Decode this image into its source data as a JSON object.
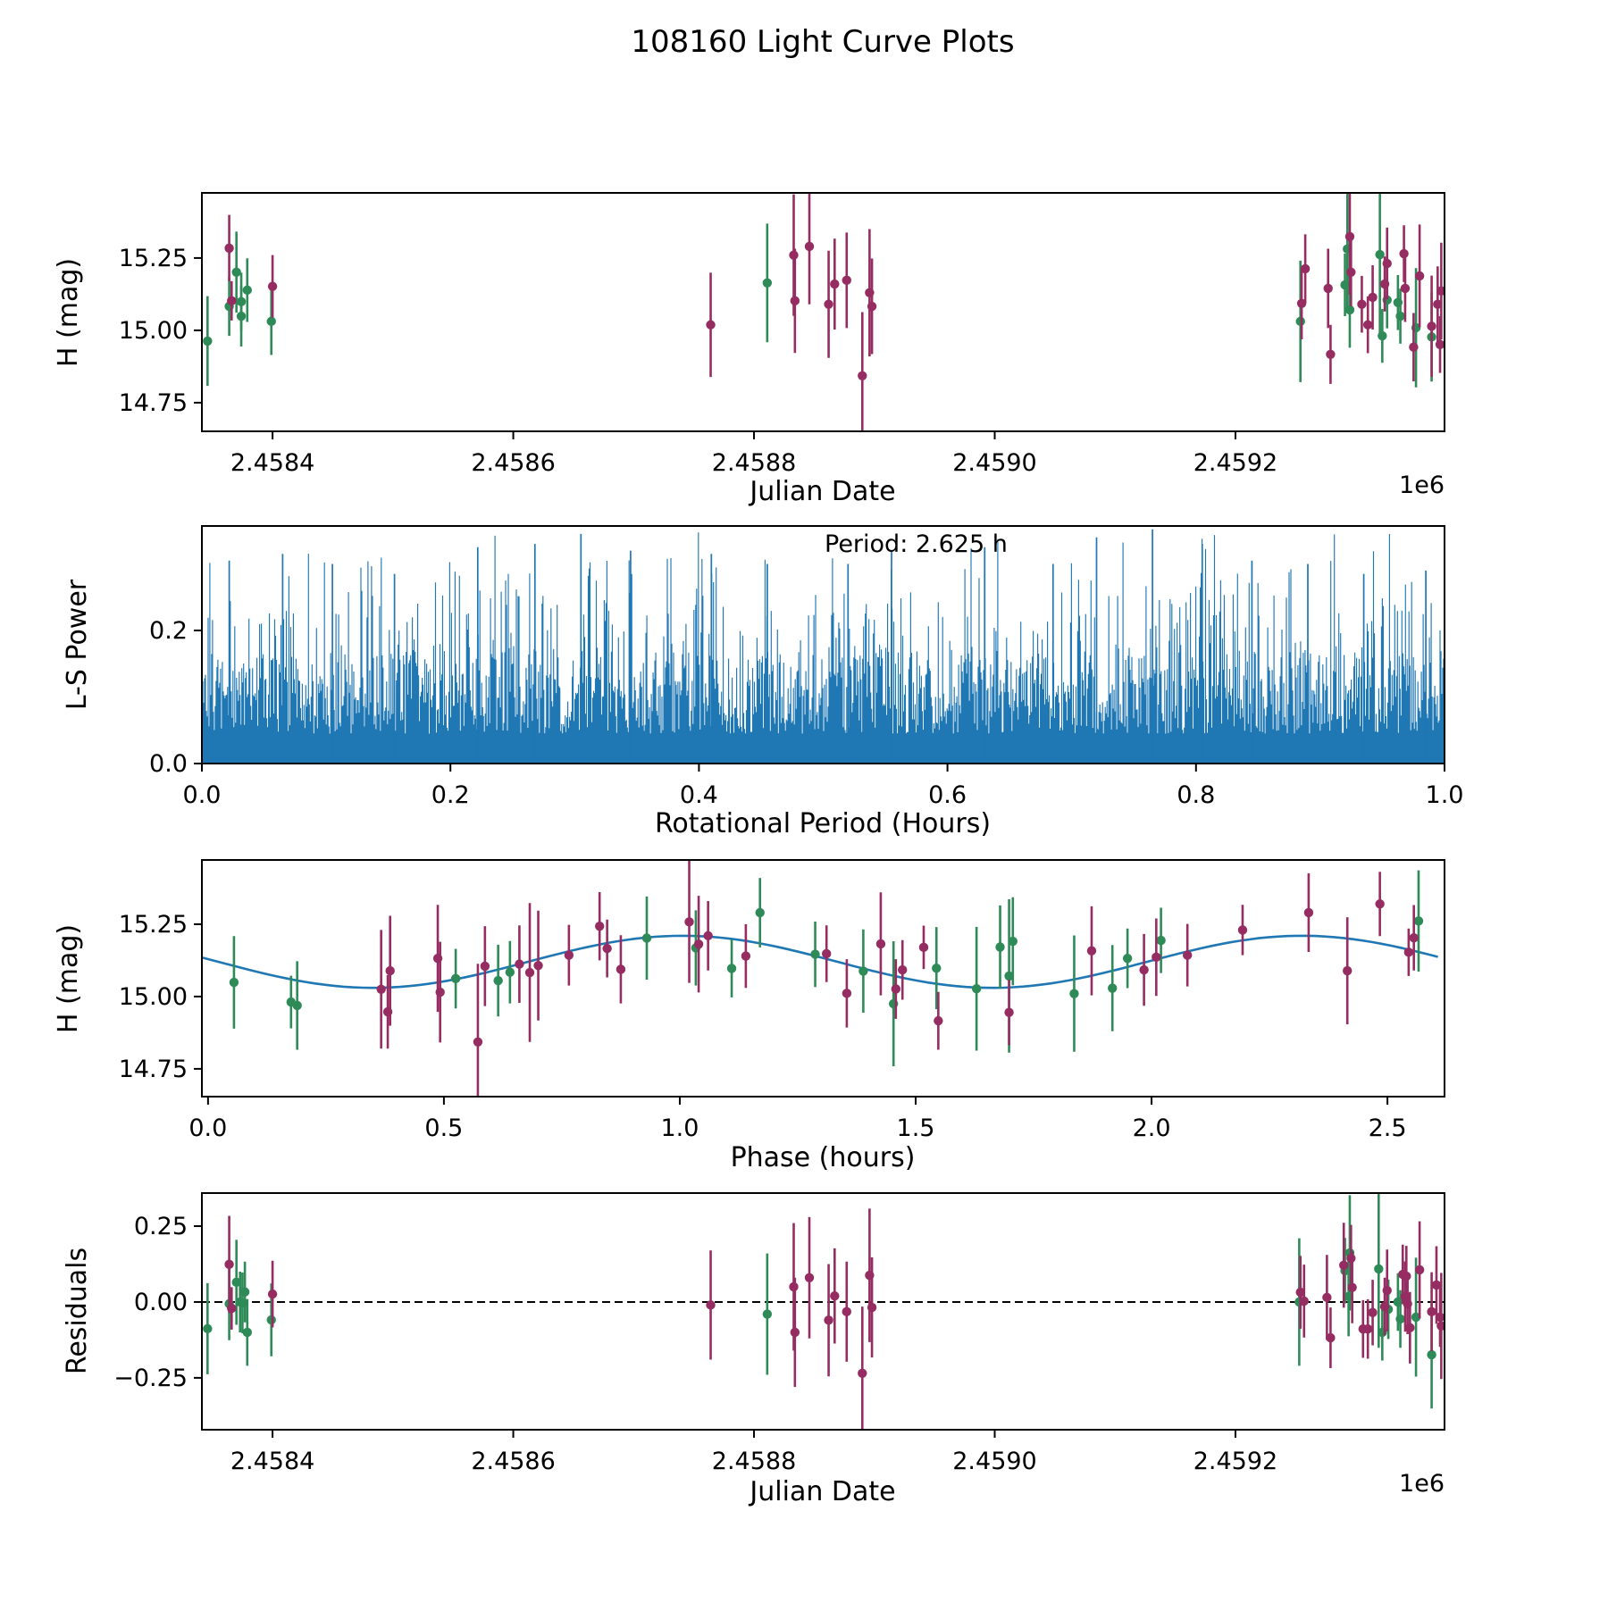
{
  "title": "108160 Light Curve Plots",
  "colors": {
    "green": "#2e8b57",
    "purple": "#962d62",
    "blue": "#1f77b4",
    "black": "#000000"
  },
  "chart_data": [
    {
      "id": "jd_mag",
      "type": "scatter",
      "xlabel": "Julian Date",
      "ylabel": "H (mag)",
      "offset_text": "1e6",
      "xlim": [
        2.4583413,
        2.4593737
      ],
      "ylim": [
        14.651,
        15.475
      ],
      "xticks": [
        {
          "v": 2.4584,
          "label": "2.4584"
        },
        {
          "v": 2.4586,
          "label": "2.4586"
        },
        {
          "v": 2.4588,
          "label": "2.4588"
        },
        {
          "v": 2.459,
          "label": "2.4590"
        },
        {
          "v": 2.4592,
          "label": "2.4592"
        }
      ],
      "yticks": [
        {
          "v": 15.25,
          "label": "15.25"
        },
        {
          "v": 15.0,
          "label": "15.00"
        },
        {
          "v": 14.75,
          "label": "14.75"
        }
      ],
      "series": {
        "green": [
          [
            2.458346,
            14.963,
            0.155
          ],
          [
            2.45837,
            15.201,
            0.14
          ],
          [
            2.458364,
            15.083,
            0.102
          ],
          [
            2.458374,
            15.099,
            0.1
          ],
          [
            2.458379,
            15.139,
            0.11
          ],
          [
            2.458374,
            15.049,
            0.105
          ],
          [
            2.458399,
            15.031,
            0.116
          ],
          [
            2.458811,
            15.164,
            0.205
          ],
          [
            2.459254,
            15.031,
            0.21
          ],
          [
            2.459293,
            15.281,
            0.2
          ],
          [
            2.459291,
            15.157,
            0.108
          ],
          [
            2.459295,
            15.071,
            0.131
          ],
          [
            2.45932,
            15.262,
            0.27
          ],
          [
            2.459326,
            15.105,
            0.098
          ],
          [
            2.459322,
            14.981,
            0.093
          ],
          [
            2.459335,
            15.096,
            0.095
          ],
          [
            2.459337,
            15.049,
            0.095
          ],
          [
            2.45935,
            15.009,
            0.206
          ],
          [
            2.459363,
            14.977,
            0.154
          ]
        ],
        "purple": [
          [
            2.458364,
            15.284,
            0.115
          ],
          [
            2.458366,
            15.102,
            0.068
          ],
          [
            2.4584,
            15.152,
            0.108
          ],
          [
            2.458764,
            15.019,
            0.18
          ],
          [
            2.458833,
            15.26,
            0.21
          ],
          [
            2.458834,
            15.102,
            0.18
          ],
          [
            2.458846,
            15.29,
            0.2
          ],
          [
            2.458862,
            15.09,
            0.185
          ],
          [
            2.458867,
            15.16,
            0.157
          ],
          [
            2.458877,
            15.173,
            0.165
          ],
          [
            2.45889,
            14.843,
            0.22
          ],
          [
            2.458896,
            15.13,
            0.22
          ],
          [
            2.458898,
            15.083,
            0.165
          ],
          [
            2.459258,
            15.213,
            0.119
          ],
          [
            2.459255,
            15.093,
            0.124
          ],
          [
            2.459277,
            15.145,
            0.137
          ],
          [
            2.459279,
            14.917,
            0.102
          ],
          [
            2.459295,
            15.324,
            0.2
          ],
          [
            2.459296,
            15.201,
            0.118
          ],
          [
            2.459305,
            15.09,
            0.098
          ],
          [
            2.45931,
            15.019,
            0.098
          ],
          [
            2.459314,
            15.114,
            0.111
          ],
          [
            2.459326,
            15.231,
            0.124
          ],
          [
            2.459324,
            15.16,
            0.095
          ],
          [
            2.45934,
            15.265,
            0.098
          ],
          [
            2.459341,
            15.145,
            0.116
          ],
          [
            2.459348,
            14.942,
            0.118
          ],
          [
            2.459353,
            15.188,
            0.178
          ],
          [
            2.459363,
            15.014,
            0.175
          ],
          [
            2.459368,
            15.09,
            0.131
          ],
          [
            2.45937,
            14.951,
            0.098
          ],
          [
            2.459371,
            15.136,
            0.167
          ]
        ]
      }
    },
    {
      "id": "periodogram",
      "type": "bar",
      "xlabel": "Rotational Period (Hours)",
      "ylabel": "L-S Power",
      "annotation": "Period: 2.625 h",
      "xlim": [
        0.0,
        1.0
      ],
      "ylim": [
        0.0,
        0.357
      ],
      "xticks": [
        {
          "v": 0.0,
          "label": "0.0"
        },
        {
          "v": 0.2,
          "label": "0.2"
        },
        {
          "v": 0.4,
          "label": "0.4"
        },
        {
          "v": 0.6,
          "label": "0.6"
        },
        {
          "v": 0.8,
          "label": "0.8"
        },
        {
          "v": 1.0,
          "label": "1.0"
        }
      ],
      "yticks": [
        {
          "v": 0.0,
          "label": "0.0"
        },
        {
          "v": 0.2,
          "label": "0.2"
        }
      ],
      "noise": {
        "seed": 7,
        "n_lines": 1400,
        "base": 0.045,
        "bulk": 0.125,
        "bulk_exp": 1.3,
        "spike_prob": 0.22,
        "spike_min": 0.05,
        "spike_span": 0.13,
        "max": 0.352
      },
      "peaks": [
        [
          0.022,
          0.305
        ],
        [
          0.065,
          0.315
        ],
        [
          0.105,
          0.3
        ],
        [
          0.155,
          0.285
        ],
        [
          0.222,
          0.325
        ],
        [
          0.268,
          0.33
        ],
        [
          0.305,
          0.345
        ],
        [
          0.345,
          0.32
        ],
        [
          0.41,
          0.315
        ],
        [
          0.455,
          0.3
        ],
        [
          0.52,
          0.3
        ],
        [
          0.555,
          0.32
        ],
        [
          0.63,
          0.325
        ],
        [
          0.685,
          0.3
        ],
        [
          0.72,
          0.34
        ],
        [
          0.765,
          0.352
        ],
        [
          0.805,
          0.33
        ],
        [
          0.845,
          0.305
        ],
        [
          0.89,
          0.3
        ],
        [
          0.935,
          0.285
        ],
        [
          0.985,
          0.29
        ]
      ]
    },
    {
      "id": "phase",
      "type": "scatter",
      "xlabel": "Phase (hours)",
      "ylabel": "H (mag)",
      "xlim": [
        -0.013,
        2.621
      ],
      "ylim": [
        14.654,
        15.472
      ],
      "xticks": [
        {
          "v": 0.0,
          "label": "0.0"
        },
        {
          "v": 0.5,
          "label": "0.5"
        },
        {
          "v": 1.0,
          "label": "1.0"
        },
        {
          "v": 1.5,
          "label": "1.5"
        },
        {
          "v": 2.0,
          "label": "2.0"
        },
        {
          "v": 2.5,
          "label": "2.5"
        }
      ],
      "yticks": [
        {
          "v": 15.25,
          "label": "15.25"
        },
        {
          "v": 15.0,
          "label": "15.00"
        },
        {
          "v": 14.75,
          "label": "14.75"
        }
      ],
      "fit_curve": {
        "mean_mag": 15.12,
        "amplitude": 0.09,
        "curve_period_hours": 1.3125,
        "phase_of_minimum": 0.35
      },
      "series": {
        "green": [
          [
            0.055,
            15.049,
            0.16
          ],
          [
            0.176,
            14.981,
            0.091
          ],
          [
            0.189,
            14.969,
            0.153
          ],
          [
            0.525,
            15.062,
            0.103
          ],
          [
            0.615,
            15.055,
            0.124
          ],
          [
            0.64,
            15.084,
            0.108
          ],
          [
            0.93,
            15.202,
            0.144
          ],
          [
            1.034,
            15.168,
            0.13
          ],
          [
            1.11,
            15.097,
            0.1
          ],
          [
            1.17,
            15.29,
            0.12
          ],
          [
            1.287,
            15.146,
            0.113
          ],
          [
            1.389,
            15.088,
            0.144
          ],
          [
            1.453,
            14.975,
            0.216
          ],
          [
            1.544,
            15.098,
            0.142
          ],
          [
            1.629,
            15.027,
            0.214
          ],
          [
            1.679,
            15.171,
            0.144
          ],
          [
            1.698,
            15.071,
            0.265
          ],
          [
            1.706,
            15.191,
            0.152
          ],
          [
            1.836,
            15.01,
            0.201
          ],
          [
            1.917,
            15.029,
            0.149
          ],
          [
            1.949,
            15.132,
            0.103
          ],
          [
            2.02,
            15.194,
            0.113
          ],
          [
            2.566,
            15.261,
            0.175
          ]
        ],
        "purple": [
          [
            0.367,
            15.025,
            0.205
          ],
          [
            0.381,
            14.947,
            0.127
          ],
          [
            0.386,
            15.089,
            0.19
          ],
          [
            0.487,
            15.132,
            0.185
          ],
          [
            0.492,
            15.015,
            0.174
          ],
          [
            0.572,
            14.843,
            0.27
          ],
          [
            0.587,
            15.105,
            0.138
          ],
          [
            0.66,
            15.112,
            0.134
          ],
          [
            0.682,
            15.083,
            0.24
          ],
          [
            0.7,
            15.107,
            0.19
          ],
          [
            0.765,
            15.143,
            0.105
          ],
          [
            0.83,
            15.243,
            0.118
          ],
          [
            0.846,
            15.166,
            0.1
          ],
          [
            0.875,
            15.094,
            0.118
          ],
          [
            1.02,
            15.258,
            0.211
          ],
          [
            1.04,
            15.181,
            0.167
          ],
          [
            1.06,
            15.21,
            0.12
          ],
          [
            1.14,
            15.14,
            0.11
          ],
          [
            1.311,
            15.148,
            0.098
          ],
          [
            1.354,
            15.011,
            0.118
          ],
          [
            1.426,
            15.182,
            0.178
          ],
          [
            1.458,
            15.026,
            0.103
          ],
          [
            1.472,
            15.092,
            0.103
          ],
          [
            1.517,
            15.17,
            0.075
          ],
          [
            1.548,
            14.916,
            0.1
          ],
          [
            1.698,
            14.945,
            0.113
          ],
          [
            1.873,
            15.158,
            0.154
          ],
          [
            1.984,
            15.092,
            0.124
          ],
          [
            2.01,
            15.136,
            0.134
          ],
          [
            2.076,
            15.143,
            0.108
          ],
          [
            2.193,
            15.23,
            0.087
          ],
          [
            2.333,
            15.29,
            0.136
          ],
          [
            2.415,
            15.089,
            0.185
          ],
          [
            2.484,
            15.32,
            0.111
          ],
          [
            2.545,
            15.153,
            0.082
          ],
          [
            2.556,
            15.203,
            0.113
          ]
        ]
      }
    },
    {
      "id": "residuals",
      "type": "scatter",
      "xlabel": "Julian Date",
      "ylabel": "Residuals",
      "offset_text": "1e6",
      "xlim": [
        2.4583413,
        2.4593737
      ],
      "ylim": [
        -0.421,
        0.359
      ],
      "zero_line": 0.0,
      "xticks": [
        {
          "v": 2.4584,
          "label": "2.4584"
        },
        {
          "v": 2.4586,
          "label": "2.4586"
        },
        {
          "v": 2.4588,
          "label": "2.4588"
        },
        {
          "v": 2.459,
          "label": "2.4590"
        },
        {
          "v": 2.4592,
          "label": "2.4592"
        }
      ],
      "yticks": [
        {
          "v": 0.25,
          "label": "0.25"
        },
        {
          "v": 0.0,
          "label": "0.00"
        },
        {
          "v": -0.25,
          "label": "−0.25"
        }
      ],
      "series": {
        "green": [
          [
            2.458346,
            -0.088,
            0.15
          ],
          [
            2.458364,
            -0.006,
            0.12
          ],
          [
            2.45837,
            0.065,
            0.14
          ],
          [
            2.458373,
            0.0,
            0.1
          ],
          [
            2.458375,
            -0.003,
            0.1
          ],
          [
            2.458377,
            0.033,
            0.1
          ],
          [
            2.458379,
            -0.1,
            0.11
          ],
          [
            2.458399,
            -0.059,
            0.12
          ],
          [
            2.458811,
            -0.04,
            0.2
          ],
          [
            2.459253,
            0.0,
            0.21
          ],
          [
            2.459291,
            0.103,
            0.108
          ],
          [
            2.459294,
            0.018,
            0.131
          ],
          [
            2.459295,
            0.162,
            0.19
          ],
          [
            2.459319,
            0.109,
            0.26
          ],
          [
            2.459322,
            -0.1,
            0.093
          ],
          [
            2.459327,
            -0.024,
            0.098
          ],
          [
            2.459335,
            0.0,
            0.095
          ],
          [
            2.459337,
            -0.056,
            0.095
          ],
          [
            2.45935,
            -0.05,
            0.196
          ],
          [
            2.459363,
            -0.174,
            0.177
          ]
        ],
        "purple": [
          [
            2.458364,
            0.124,
            0.16
          ],
          [
            2.458366,
            -0.021,
            0.07
          ],
          [
            2.4584,
            0.026,
            0.11
          ],
          [
            2.458764,
            -0.01,
            0.18
          ],
          [
            2.458833,
            0.05,
            0.21
          ],
          [
            2.458834,
            -0.1,
            0.18
          ],
          [
            2.458846,
            0.08,
            0.2
          ],
          [
            2.458862,
            -0.06,
            0.185
          ],
          [
            2.458867,
            0.02,
            0.157
          ],
          [
            2.458877,
            -0.032,
            0.165
          ],
          [
            2.45889,
            -0.235,
            0.22
          ],
          [
            2.458896,
            0.088,
            0.22
          ],
          [
            2.458898,
            -0.018,
            0.165
          ],
          [
            2.459254,
            0.032,
            0.12
          ],
          [
            2.459257,
            0.003,
            0.12
          ],
          [
            2.459276,
            0.015,
            0.14
          ],
          [
            2.459279,
            -0.118,
            0.1
          ],
          [
            2.45929,
            0.121,
            0.14
          ],
          [
            2.459296,
            0.144,
            0.11
          ],
          [
            2.459297,
            0.048,
            0.118
          ],
          [
            2.459306,
            -0.089,
            0.095
          ],
          [
            2.45931,
            -0.089,
            0.098
          ],
          [
            2.459314,
            -0.035,
            0.108
          ],
          [
            2.459324,
            -0.015,
            0.095
          ],
          [
            2.459326,
            0.038,
            0.135
          ],
          [
            2.459339,
            0.091,
            0.098
          ],
          [
            2.459341,
            0.018,
            0.116
          ],
          [
            2.459342,
            0.085,
            0.1
          ],
          [
            2.459343,
            -0.006,
            0.1
          ],
          [
            2.459345,
            -0.085,
            0.118
          ],
          [
            2.459353,
            0.106,
            0.16
          ],
          [
            2.459363,
            -0.032,
            0.13
          ],
          [
            2.459367,
            0.056,
            0.128
          ],
          [
            2.45937,
            -0.05,
            0.098
          ],
          [
            2.459371,
            -0.079,
            0.175
          ]
        ]
      }
    }
  ]
}
